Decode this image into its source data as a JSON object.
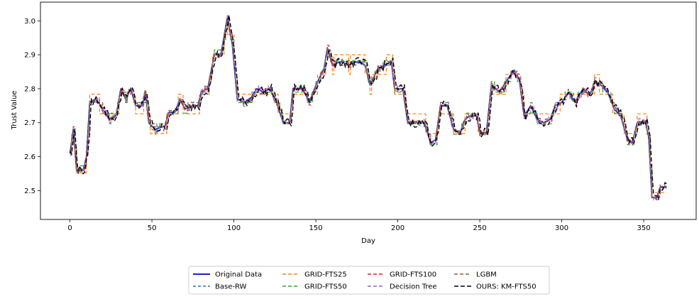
{
  "chart_data": {
    "type": "line",
    "title": "",
    "xlabel": "Day",
    "ylabel": "Trust Value",
    "xlim": [
      -18,
      382
    ],
    "ylim": [
      2.415,
      3.055
    ],
    "xticks": [
      0,
      50,
      100,
      150,
      200,
      250,
      300,
      350
    ],
    "yticks": [
      2.5,
      2.6,
      2.7,
      2.8,
      2.9,
      3.0
    ],
    "ytick_labels": [
      "2.5",
      "2.6",
      "2.7",
      "2.8",
      "2.9",
      "3.0"
    ],
    "grid": false,
    "legend_placement": "bottom-center",
    "legend_columns": 4,
    "original": [
      [
        0,
        2.61
      ],
      [
        2,
        2.68
      ],
      [
        4,
        2.56
      ],
      [
        8,
        2.56
      ],
      [
        10,
        2.6
      ],
      [
        12,
        2.76
      ],
      [
        16,
        2.77
      ],
      [
        20,
        2.74
      ],
      [
        24,
        2.71
      ],
      [
        28,
        2.72
      ],
      [
        31,
        2.8
      ],
      [
        34,
        2.77
      ],
      [
        37,
        2.8
      ],
      [
        40,
        2.75
      ],
      [
        44,
        2.75
      ],
      [
        46,
        2.79
      ],
      [
        48,
        2.7
      ],
      [
        52,
        2.68
      ],
      [
        58,
        2.69
      ],
      [
        60,
        2.73
      ],
      [
        64,
        2.73
      ],
      [
        67,
        2.77
      ],
      [
        70,
        2.74
      ],
      [
        75,
        2.75
      ],
      [
        78,
        2.75
      ],
      [
        80,
        2.79
      ],
      [
        84,
        2.8
      ],
      [
        88,
        2.9
      ],
      [
        92,
        2.9
      ],
      [
        96,
        3.01
      ],
      [
        99,
        2.93
      ],
      [
        102,
        2.77
      ],
      [
        106,
        2.76
      ],
      [
        110,
        2.77
      ],
      [
        114,
        2.8
      ],
      [
        118,
        2.79
      ],
      [
        122,
        2.8
      ],
      [
        126,
        2.76
      ],
      [
        130,
        2.7
      ],
      [
        134,
        2.7
      ],
      [
        136,
        2.8
      ],
      [
        142,
        2.8
      ],
      [
        146,
        2.76
      ],
      [
        150,
        2.81
      ],
      [
        155,
        2.86
      ],
      [
        157,
        2.92
      ],
      [
        160,
        2.87
      ],
      [
        165,
        2.88
      ],
      [
        170,
        2.87
      ],
      [
        175,
        2.88
      ],
      [
        180,
        2.87
      ],
      [
        183,
        2.81
      ],
      [
        188,
        2.86
      ],
      [
        192,
        2.87
      ],
      [
        196,
        2.88
      ],
      [
        198,
        2.8
      ],
      [
        203,
        2.8
      ],
      [
        206,
        2.7
      ],
      [
        212,
        2.7
      ],
      [
        216,
        2.7
      ],
      [
        220,
        2.64
      ],
      [
        223,
        2.65
      ],
      [
        226,
        2.75
      ],
      [
        230,
        2.75
      ],
      [
        234,
        2.68
      ],
      [
        238,
        2.67
      ],
      [
        241,
        2.71
      ],
      [
        244,
        2.72
      ],
      [
        248,
        2.72
      ],
      [
        250,
        2.67
      ],
      [
        254,
        2.67
      ],
      [
        257,
        2.81
      ],
      [
        262,
        2.79
      ],
      [
        266,
        2.82
      ],
      [
        270,
        2.85
      ],
      [
        274,
        2.83
      ],
      [
        277,
        2.72
      ],
      [
        281,
        2.75
      ],
      [
        285,
        2.71
      ],
      [
        289,
        2.7
      ],
      [
        293,
        2.71
      ],
      [
        296,
        2.75
      ],
      [
        300,
        2.76
      ],
      [
        304,
        2.79
      ],
      [
        308,
        2.76
      ],
      [
        313,
        2.8
      ],
      [
        317,
        2.78
      ],
      [
        320,
        2.82
      ],
      [
        324,
        2.81
      ],
      [
        328,
        2.79
      ],
      [
        332,
        2.74
      ],
      [
        336,
        2.72
      ],
      [
        340,
        2.65
      ],
      [
        343,
        2.64
      ],
      [
        346,
        2.7
      ],
      [
        351,
        2.7
      ],
      [
        353,
        2.66
      ],
      [
        355,
        2.48
      ],
      [
        358,
        2.48
      ],
      [
        360,
        2.51
      ],
      [
        364,
        2.51
      ]
    ],
    "series": [
      {
        "name": "Original Data",
        "color": "#0000cc",
        "dash": "",
        "width": 1.6,
        "offset": 0,
        "quant": 0,
        "noise": 0,
        "seed": 0
      },
      {
        "name": "Base-RW",
        "color": "#1f77b4",
        "dash": "4,3",
        "width": 1.2,
        "offset": 0,
        "quant": 0,
        "noise": 0.004,
        "seed": 11
      },
      {
        "name": "GRID-FTS25",
        "color": "#ff7f0e",
        "dash": "5,3",
        "width": 1.2,
        "offset": 0,
        "quant": 0.058,
        "noise": 0,
        "seed": 23
      },
      {
        "name": "GRID-FTS50",
        "color": "#2ca02c",
        "dash": "5,3",
        "width": 1.2,
        "offset": 0,
        "quant": 0.031,
        "noise": 0,
        "seed": 37
      },
      {
        "name": "GRID-FTS100",
        "color": "#d62728",
        "dash": "5,3",
        "width": 1.2,
        "offset": 0,
        "quant": 0.016,
        "noise": 0,
        "seed": 41
      },
      {
        "name": "Decision Tree",
        "color": "#9467bd",
        "dash": "5,3",
        "width": 1.2,
        "offset": 0,
        "quant": 0.012,
        "noise": 0.008,
        "seed": 53
      },
      {
        "name": "LGBM",
        "color": "#8c564b",
        "dash": "5,3",
        "width": 1.2,
        "offset": 0,
        "quant": 0,
        "noise": 0.01,
        "seed": 67
      },
      {
        "name": "OURS: KM-FTS50",
        "color": "#000000",
        "dash": "6,3",
        "width": 1.4,
        "offset": 1,
        "quant": 0,
        "noise": 0.014,
        "seed": 79
      }
    ]
  }
}
